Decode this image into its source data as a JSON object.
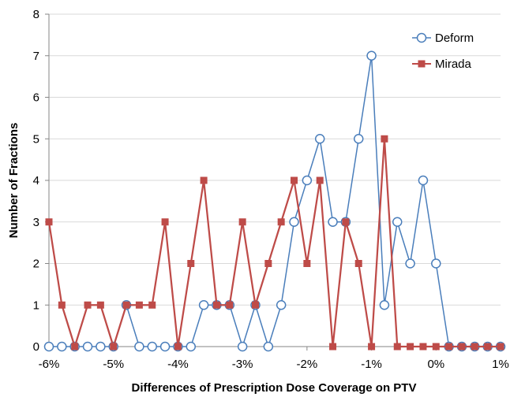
{
  "chart_data": {
    "type": "line",
    "xlabel": "Differences of Prescription Dose Coverage on PTV",
    "ylabel": "Number of Fractions",
    "xlim": [
      -6,
      1
    ],
    "ylim": [
      0,
      8
    ],
    "x_ticks": [
      -6,
      -5,
      -4,
      -3,
      -2,
      -1,
      0,
      1
    ],
    "x_tick_labels": [
      "-6%",
      "-5%",
      "-4%",
      "-3%",
      "-2%",
      "-1%",
      "0%",
      "1%"
    ],
    "y_ticks": [
      0,
      1,
      2,
      3,
      4,
      5,
      6,
      7,
      8
    ],
    "y_tick_labels": [
      "0",
      "1",
      "2",
      "3",
      "4",
      "5",
      "6",
      "7",
      "8"
    ],
    "grid": "horizontal",
    "legend_position": "top-right",
    "x": [
      -6.0,
      -5.8,
      -5.6,
      -5.4,
      -5.2,
      -5.0,
      -4.8,
      -4.6,
      -4.4,
      -4.2,
      -4.0,
      -3.8,
      -3.6,
      -3.4,
      -3.2,
      -3.0,
      -2.8,
      -2.6,
      -2.4,
      -2.2,
      -2.0,
      -1.8,
      -1.6,
      -1.4,
      -1.2,
      -1.0,
      -0.8,
      -0.6,
      -0.4,
      -0.2,
      0.0,
      0.2,
      0.4,
      0.6,
      0.8,
      1.0
    ],
    "series": [
      {
        "name": "Deform",
        "color": "#4a7ebb",
        "marker": "open-circle",
        "values": [
          0,
          0,
          0,
          0,
          0,
          0,
          1,
          0,
          0,
          0,
          0,
          0,
          1,
          1,
          1,
          0,
          1,
          0,
          1,
          3,
          4,
          5,
          3,
          3,
          5,
          7,
          1,
          3,
          2,
          4,
          2,
          0,
          0,
          0,
          0,
          0
        ]
      },
      {
        "name": "Mirada",
        "color": "#be4b48",
        "marker": "filled-square",
        "values": [
          3,
          1,
          0,
          1,
          1,
          0,
          1,
          1,
          1,
          3,
          0,
          2,
          4,
          1,
          1,
          3,
          1,
          2,
          3,
          4,
          2,
          4,
          0,
          3,
          2,
          0,
          5,
          0,
          0,
          0,
          0,
          0,
          0,
          0,
          0,
          0
        ]
      }
    ]
  }
}
